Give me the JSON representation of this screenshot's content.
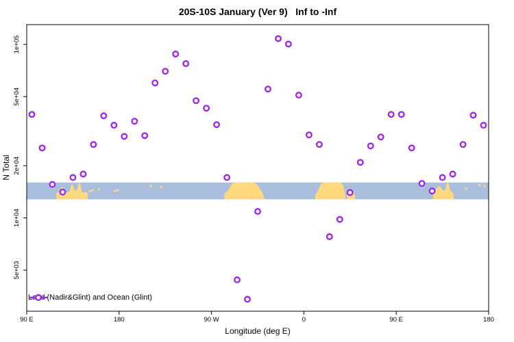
{
  "title": "20S-10S January (Ver 9)   Inf to -Inf",
  "legend": {
    "label": "Land (Nadir&Glint) and Ocean (Glint)"
  },
  "colors": {
    "point_ring": "#a020f0",
    "point_fill": "#ffffff",
    "ocean": "#a9bedd",
    "land": "#ffd97d",
    "axis": "#000000"
  },
  "chart_data": {
    "type": "scatter",
    "title": "20S-10S January (Ver 9)   Inf to -Inf",
    "xlabel": "Longitude (deg E)",
    "ylabel": "N Total",
    "x_axis": {
      "range_deg": [
        90,
        540
      ],
      "ticks": [
        {
          "deg": 90,
          "label": "90 E"
        },
        {
          "deg": 180,
          "label": "180"
        },
        {
          "deg": 270,
          "label": "90 W"
        },
        {
          "deg": 360,
          "label": "0"
        },
        {
          "deg": 450,
          "label": "90 E"
        },
        {
          "deg": 540,
          "label": "180"
        }
      ]
    },
    "y_axis": {
      "scale": "log",
      "range": [
        2900,
        130000
      ],
      "ticks": [
        {
          "value": 100000,
          "label": "1e+05"
        },
        {
          "value": 50000,
          "label": "5e+04"
        },
        {
          "value": 20000,
          "label": "2e+04"
        },
        {
          "value": 10000,
          "label": "1e+04"
        },
        {
          "value": 5000,
          "label": "5e+03"
        }
      ]
    },
    "series": [
      {
        "name": "Land (Nadir&Glint) and Ocean (Glint)",
        "marker": "open-circle",
        "points_columns": [
          "lon_deg_axis",
          "n_total"
        ],
        "points": [
          [
            95,
            39500
          ],
          [
            105,
            25300
          ],
          [
            115,
            15600
          ],
          [
            125,
            14100
          ],
          [
            135,
            17100
          ],
          [
            145,
            17900
          ],
          [
            155,
            26500
          ],
          [
            165,
            38800
          ],
          [
            175,
            34200
          ],
          [
            185,
            29500
          ],
          [
            195,
            36100
          ],
          [
            205,
            29800
          ],
          [
            215,
            60000
          ],
          [
            225,
            70000
          ],
          [
            235,
            88000
          ],
          [
            245,
            77500
          ],
          [
            255,
            47400
          ],
          [
            265,
            42900
          ],
          [
            275,
            34500
          ],
          [
            285,
            17100
          ],
          [
            295,
            4400
          ],
          [
            305,
            3400
          ],
          [
            315,
            10900
          ],
          [
            325,
            55300
          ],
          [
            335,
            108000
          ],
          [
            345,
            100500
          ],
          [
            355,
            51000
          ],
          [
            365,
            30100
          ],
          [
            375,
            26500
          ],
          [
            385,
            7800
          ],
          [
            395,
            9800
          ],
          [
            405,
            14000
          ],
          [
            415,
            20900
          ],
          [
            425,
            26000
          ],
          [
            435,
            29300
          ],
          [
            445,
            39500
          ],
          [
            455,
            39500
          ],
          [
            465,
            25300
          ],
          [
            475,
            15800
          ],
          [
            485,
            14300
          ],
          [
            495,
            17100
          ],
          [
            505,
            17900
          ],
          [
            515,
            26500
          ],
          [
            525,
            39100
          ],
          [
            535,
            34200
          ]
        ]
      }
    ],
    "map_band": {
      "description_visible": "world map strip: ocean blue, land yellow",
      "value_range": [
        12800,
        16000
      ],
      "land_segments": [
        {
          "name": "australia-indonesia",
          "polygon": [
            [
              119,
              1
            ],
            [
              119,
              0.6
            ],
            [
              122,
              0.5
            ],
            [
              124,
              0.25
            ],
            [
              125,
              0.3
            ],
            [
              127,
              0.55
            ],
            [
              130,
              0.6
            ],
            [
              132,
              0.5
            ],
            [
              133.5,
              0.15
            ],
            [
              134.5,
              0.02
            ],
            [
              135.5,
              0.3
            ],
            [
              137,
              0.5
            ],
            [
              139,
              0.45
            ],
            [
              140.5,
              0.05
            ],
            [
              141.5,
              0
            ],
            [
              142.5,
              0.2
            ],
            [
              143.5,
              0.55
            ],
            [
              146,
              0.6
            ],
            [
              148,
              0.55
            ],
            [
              149.5,
              0.7
            ],
            [
              149.5,
              1
            ]
          ]
        },
        {
          "name": "south-america",
          "polygon": [
            [
              282.5,
              1
            ],
            [
              282.5,
              0.7
            ],
            [
              285,
              0.55
            ],
            [
              288,
              0.3
            ],
            [
              290,
              0.05
            ],
            [
              293,
              0
            ],
            [
              310,
              0
            ],
            [
              314,
              0.1
            ],
            [
              317,
              0.35
            ],
            [
              319.5,
              0.6
            ],
            [
              321,
              0.85
            ],
            [
              321.5,
              1
            ]
          ]
        },
        {
          "name": "africa",
          "polygon": [
            [
              371,
              1
            ],
            [
              371,
              0.75
            ],
            [
              374,
              0.45
            ],
            [
              376.5,
              0.1
            ],
            [
              379,
              0
            ],
            [
              396,
              0
            ],
            [
              398.5,
              0.2
            ],
            [
              400,
              0.6
            ],
            [
              400.5,
              1
            ]
          ]
        },
        {
          "name": "madagascar",
          "polygon": [
            [
              402,
              1
            ],
            [
              402,
              0.8
            ],
            [
              404,
              0.5
            ],
            [
              406,
              0.42
            ],
            [
              408.5,
              0.55
            ],
            [
              410,
              0.8
            ],
            [
              410,
              1
            ]
          ]
        },
        {
          "name": "australia-repeat",
          "polygon": [
            [
              486,
              1
            ],
            [
              486,
              0.6
            ],
            [
              488,
              0.5
            ],
            [
              490,
              0.3
            ],
            [
              492,
              0.2
            ],
            [
              494,
              0.35
            ],
            [
              496,
              0.5
            ],
            [
              498,
              0.4
            ],
            [
              499.5,
              0.05
            ],
            [
              500.5,
              0
            ],
            [
              501.5,
              0.15
            ],
            [
              502.5,
              0.5
            ],
            [
              504,
              0.55
            ],
            [
              506,
              0.7
            ],
            [
              506,
              1
            ]
          ]
        }
      ],
      "islands": [
        [
          151.5,
          0.45
        ],
        [
          154,
          0.4
        ],
        [
          160,
          0.35
        ],
        [
          176,
          0.45
        ],
        [
          178.5,
          0.4
        ],
        [
          211,
          0.15
        ],
        [
          221,
          0.2
        ],
        [
          518,
          0.3
        ],
        [
          531,
          0.1
        ],
        [
          536,
          0.15
        ]
      ]
    }
  }
}
